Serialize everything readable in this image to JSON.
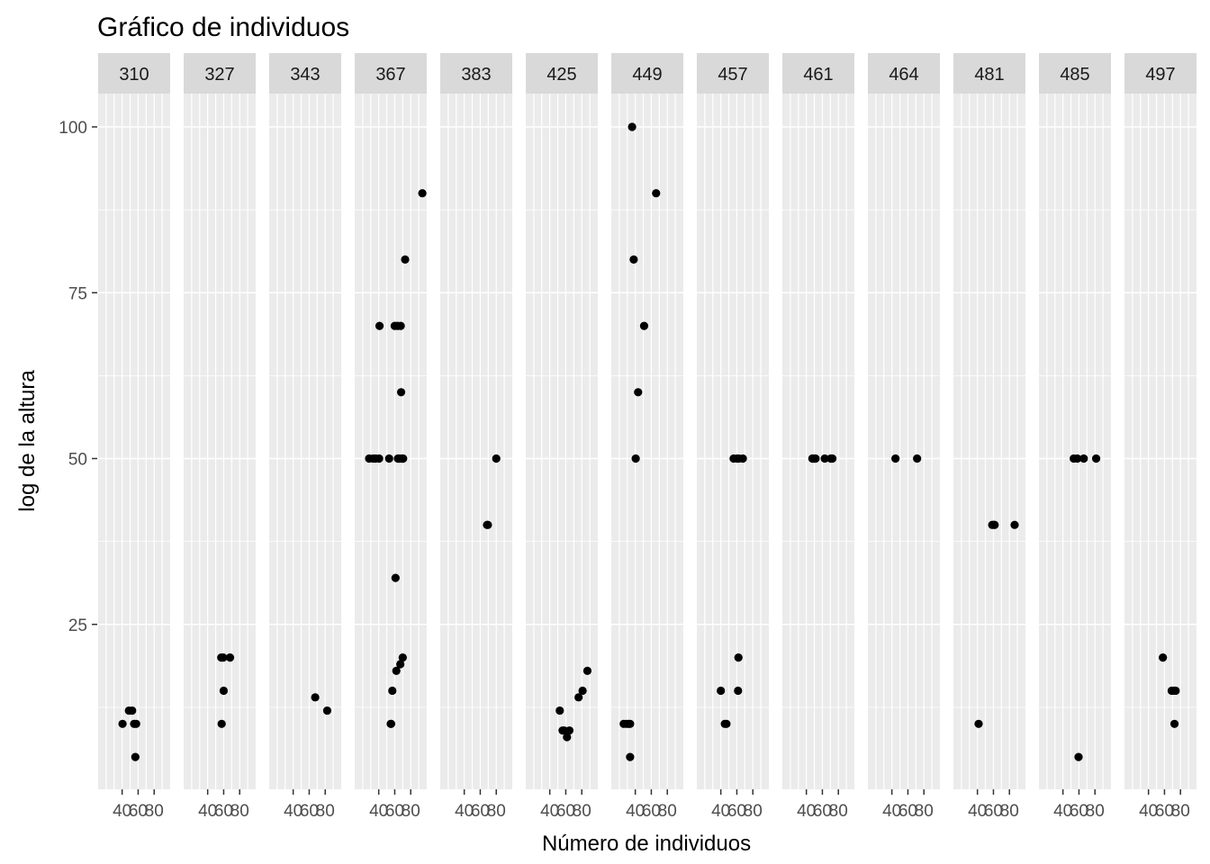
{
  "chart_data": {
    "type": "scatter",
    "title": "Gráfico de individuos",
    "xlabel": "Número de individuos",
    "ylabel": "log de la altura",
    "facet_layout": "row",
    "grid": true,
    "x_ticks": [
      "40",
      "60",
      "80"
    ],
    "y_ticks": [
      "25",
      "50",
      "75",
      "100"
    ],
    "point_color": "#000000",
    "panel_background": "#ebebeb",
    "strip_background": "#d9d9d9",
    "facets": [
      {
        "label": "310",
        "x": [
          40.5,
          48.5,
          52.5,
          55,
          57.5,
          56.5
        ],
        "y": [
          10,
          12,
          12,
          10,
          10,
          5
        ]
      },
      {
        "label": "327",
        "x": [
          57,
          57.5,
          60,
          68,
          59.5
        ],
        "y": [
          20,
          10,
          15,
          20,
          20
        ]
      },
      {
        "label": "343",
        "x": [
          67.5,
          82.5
        ],
        "y": [
          14,
          12
        ]
      },
      {
        "label": "367",
        "x": [
          28,
          33,
          36,
          40.5,
          41,
          53,
          55.5,
          60,
          61,
          63.5,
          65,
          66,
          67,
          67.5,
          68,
          69.5,
          69.5,
          70,
          70.5,
          73,
          94.5,
          57,
          55,
          62,
          64
        ],
        "y": [
          50,
          50,
          50,
          50,
          70,
          50,
          10,
          70,
          32,
          70,
          50,
          50,
          19,
          70,
          60,
          50,
          50,
          20,
          50,
          80,
          90,
          15,
          10,
          18,
          50
        ]
      },
      {
        "label": "383",
        "x": [
          68.5,
          69.5,
          80
        ],
        "y": [
          40,
          40,
          50
        ]
      },
      {
        "label": "425",
        "x": [
          52.5,
          56,
          58,
          61.5,
          64.5,
          76,
          81,
          87
        ],
        "y": [
          12,
          9,
          9,
          8,
          9,
          14,
          15,
          18
        ]
      },
      {
        "label": "449",
        "x": [
          25.5,
          29,
          31.5,
          33.5,
          33.5,
          36,
          38,
          40.5,
          43.5,
          51,
          66
        ],
        "y": [
          10,
          10,
          10,
          5,
          10,
          100,
          80,
          50,
          60,
          70,
          90
        ]
      },
      {
        "label": "457",
        "x": [
          40,
          45,
          47,
          56,
          60.5,
          62,
          61.5,
          62.5,
          67.5
        ],
        "y": [
          15,
          10,
          10,
          50,
          50,
          20,
          15,
          50,
          50
        ]
      },
      {
        "label": "461",
        "x": [
          47.5,
          48.5,
          50.5,
          51.5,
          63,
          70.5,
          72.5
        ],
        "y": [
          50,
          50,
          50,
          50,
          50,
          50,
          50
        ]
      },
      {
        "label": "464",
        "x": [
          44.5,
          71.5
        ],
        "y": [
          50,
          50
        ]
      },
      {
        "label": "481",
        "x": [
          41.5,
          58.5,
          60.5,
          61.5,
          86.5
        ],
        "y": [
          10,
          40,
          40,
          40,
          40
        ]
      },
      {
        "label": "485",
        "x": [
          53.5,
          58,
          59.5,
          66,
          81.5
        ],
        "y": [
          50,
          50,
          5,
          50,
          50
        ]
      },
      {
        "label": "497",
        "x": [
          58,
          69,
          71,
          73,
          74,
          72.5
        ],
        "y": [
          20,
          15,
          15,
          15,
          15,
          10
        ]
      }
    ]
  }
}
